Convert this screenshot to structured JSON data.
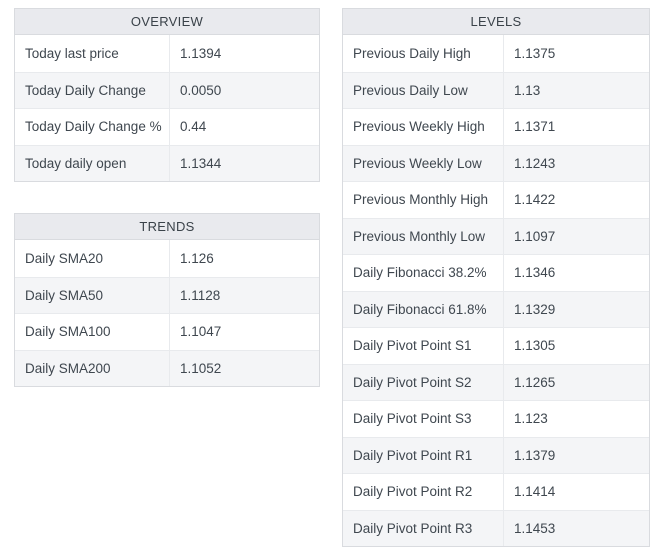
{
  "colors": {
    "header_bg": "#e9eaee",
    "row_alt_bg": "#f4f5f7",
    "border_outer": "#d9dbdf",
    "border_inner": "#e8eaed",
    "text": "#3f474f",
    "page_bg": "#ffffff"
  },
  "tables": {
    "overview": {
      "title": "OVERVIEW",
      "rows": [
        {
          "label": "Today last price",
          "value": "1.1394"
        },
        {
          "label": "Today Daily Change",
          "value": "0.0050"
        },
        {
          "label": "Today Daily Change %",
          "value": "0.44"
        },
        {
          "label": "Today daily open",
          "value": "1.1344"
        }
      ]
    },
    "trends": {
      "title": "TRENDS",
      "rows": [
        {
          "label": "Daily SMA20",
          "value": "1.126"
        },
        {
          "label": "Daily SMA50",
          "value": "1.1128"
        },
        {
          "label": "Daily SMA100",
          "value": "1.1047"
        },
        {
          "label": "Daily SMA200",
          "value": "1.1052"
        }
      ]
    },
    "levels": {
      "title": "LEVELS",
      "rows": [
        {
          "label": "Previous Daily High",
          "value": "1.1375"
        },
        {
          "label": "Previous Daily Low",
          "value": "1.13"
        },
        {
          "label": "Previous Weekly High",
          "value": "1.1371"
        },
        {
          "label": "Previous Weekly Low",
          "value": "1.1243"
        },
        {
          "label": "Previous Monthly High",
          "value": "1.1422"
        },
        {
          "label": "Previous Monthly Low",
          "value": "1.1097"
        },
        {
          "label": "Daily Fibonacci 38.2%",
          "value": "1.1346"
        },
        {
          "label": "Daily Fibonacci 61.8%",
          "value": "1.1329"
        },
        {
          "label": "Daily Pivot Point S1",
          "value": "1.1305"
        },
        {
          "label": "Daily Pivot Point S2",
          "value": "1.1265"
        },
        {
          "label": "Daily Pivot Point S3",
          "value": "1.123"
        },
        {
          "label": "Daily Pivot Point R1",
          "value": "1.1379"
        },
        {
          "label": "Daily Pivot Point R2",
          "value": "1.1414"
        },
        {
          "label": "Daily Pivot Point R3",
          "value": "1.1453"
        }
      ]
    }
  }
}
